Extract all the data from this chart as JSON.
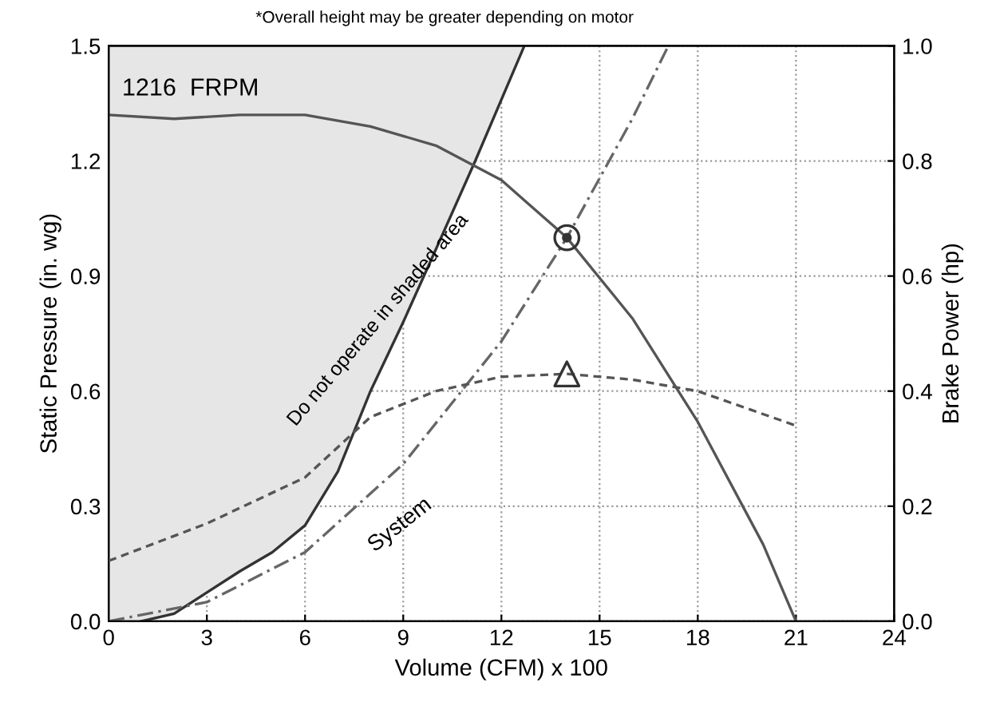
{
  "chart_data": {
    "type": "line",
    "title": "*Overall height may be greater depending on motor",
    "xlabel": "Volume (CFM) x 100",
    "ylabel": "Static Pressure (in. wg)",
    "y2label": "Brake Power (hp)",
    "xlim": [
      0,
      24
    ],
    "xticks": [
      0,
      3,
      6,
      9,
      12,
      15,
      18,
      21,
      24
    ],
    "ylim": [
      0.0,
      1.5
    ],
    "yticks": [
      {
        "value": 0,
        "label": "0.0"
      },
      0.3,
      0.6,
      0.9,
      1.2,
      1.5
    ],
    "y2lim": [
      0.0,
      1.0
    ],
    "y2ticks": [
      {
        "value": 0,
        "label": "0.0"
      },
      0.2,
      0.4,
      0.6,
      0.8,
      {
        "value": 1,
        "label": "1.0"
      }
    ],
    "grid": true,
    "legend": false,
    "series": [
      {
        "color": "#333333",
        "x": [
          1,
          2,
          3,
          4,
          5,
          6,
          7,
          8,
          9,
          10,
          11.2,
          12.7
        ],
        "values": [
          0.0,
          0.02,
          0.075,
          0.13,
          0.18,
          0.25,
          0.39,
          0.6,
          0.78,
          0.97,
          1.2,
          1.5
        ]
      },
      {
        "color": "#555555",
        "line_style": "solid",
        "x": [
          0,
          2,
          4,
          6,
          8,
          10,
          12,
          14,
          16,
          18,
          20,
          21
        ],
        "values": [
          1.32,
          1.31,
          1.32,
          1.32,
          1.29,
          1.24,
          1.15,
          1.0,
          0.79,
          0.52,
          0.2,
          0.0
        ]
      },
      {
        "color": "#666666",
        "line_style": "dashdot",
        "x": [
          0,
          3,
          6,
          9,
          12,
          14,
          16,
          17.1
        ],
        "values": [
          0.0,
          0.05,
          0.18,
          0.41,
          0.73,
          1.0,
          1.31,
          1.5
        ]
      },
      {
        "axis": "y2",
        "color": "#555555",
        "line_style": "dashed",
        "x": [
          0,
          3,
          6,
          8,
          10,
          12,
          14,
          16,
          18,
          21
        ],
        "values": [
          0.105,
          0.17,
          0.25,
          0.355,
          0.4,
          0.425,
          0.43,
          0.42,
          0.4,
          0.34
        ]
      },
      {
        "type": "scatter",
        "color": "#333333",
        "marker": "circle",
        "x": [
          14
        ],
        "values": [
          1.0
        ]
      },
      {
        "type": "scatter",
        "axis": "y2",
        "color": "#333333",
        "marker": "triangle",
        "x": [
          14
        ],
        "values": [
          0.43
        ]
      }
    ],
    "annotations": [
      "1216  FRPM",
      "Do not operate in shaded area",
      "System"
    ]
  }
}
